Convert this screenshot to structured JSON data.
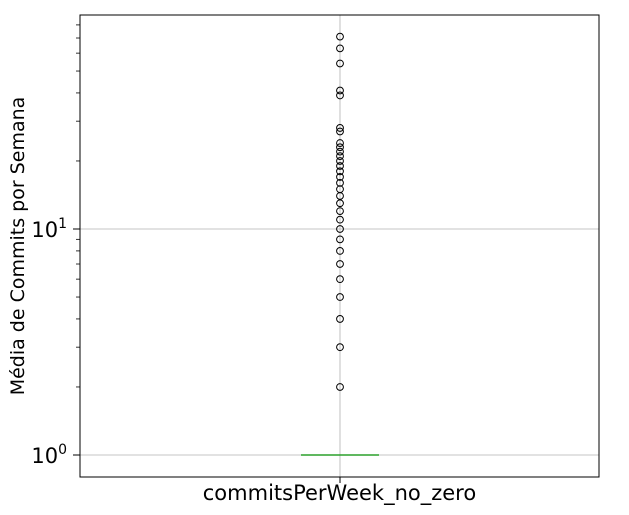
{
  "chart_data": {
    "type": "boxplot",
    "title": "",
    "xlabel": "commitsPerWeek_no_zero",
    "ylabel": "Média de Commits por Semana",
    "yscale": "log",
    "ylim": [
      0.8,
      90
    ],
    "yticks": [
      {
        "value": 1,
        "base": "10",
        "exp": "0"
      },
      {
        "value": 10,
        "base": "10",
        "exp": "1"
      }
    ],
    "grid": true,
    "categories": [
      "commitsPerWeek_no_zero"
    ],
    "box": {
      "q1": 1,
      "median": 1,
      "q3": 1,
      "whisker_low": 1,
      "whisker_high": 1
    },
    "outliers": [
      2,
      3,
      4,
      5,
      6,
      7,
      8,
      9,
      10,
      11,
      12,
      13,
      14,
      15,
      16,
      17,
      18,
      19,
      20,
      21,
      22,
      23,
      24,
      27,
      28,
      39,
      41,
      54,
      63,
      71
    ],
    "colors": {
      "median": "#2ca02c",
      "outlier_edge": "#000000",
      "grid": "#b0b0b0"
    }
  }
}
